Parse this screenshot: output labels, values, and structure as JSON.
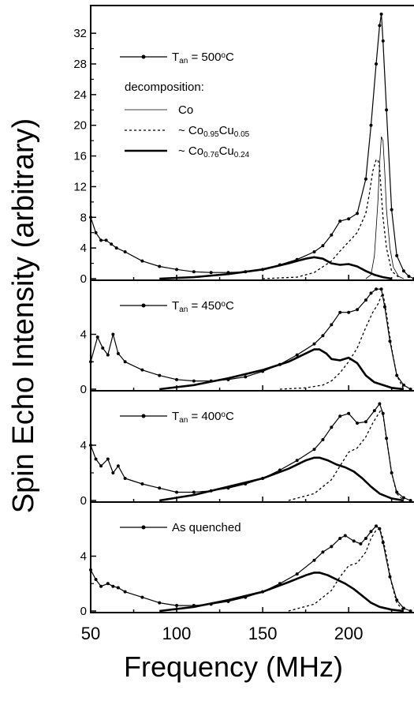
{
  "figure": {
    "ylabel": "Spin Echo Intensity (arbitrary)",
    "xlabel": "Frequency (MHz)",
    "x_ticks": [
      "50",
      "100",
      "150",
      "200"
    ]
  },
  "chart_data": [
    {
      "type": "line",
      "panel": "top",
      "xlim": [
        50,
        238
      ],
      "ylim": [
        0,
        35
      ],
      "y_ticks": [
        "0",
        "4",
        "8",
        "12",
        "16",
        "20",
        "24",
        "28",
        "32"
      ],
      "legend": {
        "data_label": "T_an = 500°C",
        "data_label_parts": [
          "T",
          "an",
          " = 500",
          "o",
          "C"
        ],
        "heading": "decomposition:",
        "components": [
          {
            "name": "Co",
            "parts": [
              "Co"
            ],
            "style": "thin-solid"
          },
          {
            "name": "~ Co0.95Cu0.05",
            "parts": [
              "~ Co",
              "0.95",
              "Cu",
              "0.05"
            ],
            "style": "dotted"
          },
          {
            "name": "~ Co0.76Cu0.24",
            "parts": [
              "~ Co",
              "0.76",
              "Cu",
              "0.24"
            ],
            "style": "thick-solid"
          }
        ]
      },
      "series": [
        {
          "role": "data",
          "x": [
            50,
            53,
            56,
            59,
            62,
            65,
            70,
            80,
            90,
            100,
            110,
            120,
            130,
            140,
            150,
            160,
            170,
            180,
            185,
            190,
            195,
            200,
            205,
            210,
            213,
            216,
            218,
            219,
            220,
            222,
            225,
            228,
            232,
            235,
            238
          ],
          "y": [
            8,
            6,
            5,
            5,
            4.5,
            4,
            3.5,
            2.3,
            1.6,
            1.2,
            0.9,
            0.8,
            0.8,
            0.9,
            1.2,
            1.8,
            2.5,
            3.5,
            4.3,
            5.7,
            7.5,
            7.8,
            8.5,
            13,
            20,
            28,
            33,
            34.5,
            31,
            22,
            9,
            3,
            1,
            0.3,
            0
          ]
        },
        {
          "role": "Co",
          "x": [
            210,
            213,
            215,
            217,
            218,
            219,
            220,
            221,
            222,
            224,
            226,
            229,
            232
          ],
          "y": [
            0,
            0.5,
            3,
            10,
            15,
            18.5,
            18,
            14,
            9,
            4,
            1.5,
            0.3,
            0
          ]
        },
        {
          "role": "Co0.95Cu0.05",
          "x": [
            150,
            170,
            180,
            190,
            195,
            200,
            205,
            210,
            212,
            214,
            216,
            217,
            218,
            219,
            220,
            222,
            225,
            230
          ],
          "y": [
            0,
            0.2,
            0.8,
            2.3,
            3.6,
            4.8,
            6,
            8.5,
            11,
            14,
            15.5,
            15.5,
            14.5,
            11,
            8,
            4,
            1,
            0
          ]
        },
        {
          "role": "Co0.76Cu0.24",
          "x": [
            90,
            110,
            130,
            150,
            165,
            175,
            180,
            185,
            190,
            195,
            200,
            205,
            210,
            215,
            220,
            225
          ],
          "y": [
            0,
            0.2,
            0.6,
            1.2,
            2,
            2.6,
            2.8,
            2.6,
            2,
            1.8,
            1.9,
            1.6,
            1,
            0.5,
            0.2,
            0
          ]
        }
      ]
    },
    {
      "type": "line",
      "panel": "450",
      "xlim": [
        50,
        238
      ],
      "ylim": [
        0,
        7.6
      ],
      "y_ticks": [
        "0",
        "4"
      ],
      "legend": {
        "data_label": "T_an = 450°C",
        "data_label_parts": [
          "T",
          "an",
          " = 450",
          "o",
          "C"
        ]
      },
      "series": [
        {
          "role": "data",
          "x": [
            50,
            54,
            57,
            60,
            63,
            66,
            70,
            80,
            90,
            100,
            110,
            120,
            130,
            140,
            150,
            160,
            170,
            180,
            185,
            190,
            195,
            200,
            205,
            210,
            213,
            216,
            219,
            221,
            224,
            228,
            232,
            236
          ],
          "y": [
            2,
            3.8,
            3,
            2.5,
            4,
            2.6,
            2,
            1.4,
            1,
            0.7,
            0.6,
            0.6,
            0.7,
            0.9,
            1.3,
            1.8,
            2.5,
            3.3,
            3.9,
            4.7,
            5.6,
            5.6,
            5.8,
            6.5,
            7,
            7.3,
            7.3,
            6,
            3.5,
            1,
            0.3,
            0
          ]
        },
        {
          "role": "Co0.95Cu0.05",
          "x": [
            160,
            175,
            185,
            190,
            195,
            200,
            205,
            210,
            214,
            217,
            219,
            220,
            222,
            225,
            228,
            232
          ],
          "y": [
            0,
            0.1,
            0.3,
            0.6,
            1.2,
            2,
            3,
            4.5,
            5.6,
            6.2,
            6.8,
            7,
            5.5,
            3,
            1,
            0
          ]
        },
        {
          "role": "Co0.76Cu0.24",
          "x": [
            90,
            110,
            130,
            150,
            165,
            175,
            180,
            183,
            187,
            190,
            195,
            200,
            205,
            210,
            215,
            220,
            225,
            232
          ],
          "y": [
            0,
            0.3,
            0.8,
            1.4,
            2,
            2.6,
            2.9,
            2.9,
            2.6,
            2.2,
            2.1,
            2.3,
            1.9,
            1,
            0.5,
            0.3,
            0.1,
            0
          ]
        }
      ]
    },
    {
      "type": "line",
      "panel": "400",
      "xlim": [
        50,
        238
      ],
      "ylim": [
        0,
        7.6
      ],
      "y_ticks": [
        "0",
        "4"
      ],
      "legend": {
        "data_label": "T_an = 400°C",
        "data_label_parts": [
          "T",
          "an",
          " = 400",
          "o",
          "C"
        ]
      },
      "series": [
        {
          "role": "data",
          "x": [
            50,
            53,
            56,
            60,
            63,
            66,
            70,
            80,
            90,
            100,
            110,
            120,
            130,
            140,
            150,
            160,
            170,
            180,
            185,
            190,
            195,
            200,
            205,
            210,
            215,
            218,
            220,
            222,
            225,
            228,
            232,
            236
          ],
          "y": [
            4,
            3,
            2.5,
            3,
            2,
            2.5,
            1.6,
            1.2,
            0.9,
            0.6,
            0.6,
            0.7,
            0.9,
            1.2,
            1.6,
            2.2,
            2.9,
            3.7,
            4.4,
            5.3,
            6.1,
            6.3,
            5.6,
            5.7,
            6.5,
            7,
            6.3,
            4.5,
            2,
            0.6,
            0.2,
            0
          ]
        },
        {
          "role": "Co0.95Cu0.05",
          "x": [
            165,
            180,
            190,
            195,
            200,
            205,
            210,
            214,
            217,
            219,
            220,
            222,
            225,
            228,
            232
          ],
          "y": [
            0,
            0.5,
            1.5,
            2.5,
            3.5,
            3.8,
            4.6,
            5.6,
            6.2,
            6.6,
            6.2,
            4.5,
            2,
            0.5,
            0
          ]
        },
        {
          "role": "Co0.76Cu0.24",
          "x": [
            90,
            100,
            110,
            130,
            150,
            165,
            175,
            180,
            183,
            188,
            193,
            198,
            203,
            208,
            213,
            218,
            225,
            232
          ],
          "y": [
            0,
            0.2,
            0.4,
            1,
            1.6,
            2.3,
            2.9,
            3.1,
            3.1,
            2.9,
            2.6,
            2.4,
            2.1,
            1.6,
            1,
            0.5,
            0.15,
            0
          ]
        }
      ]
    },
    {
      "type": "line",
      "panel": "quenched",
      "xlim": [
        50,
        238
      ],
      "ylim": [
        0,
        7.6
      ],
      "y_ticks": [
        "0",
        "4"
      ],
      "legend": {
        "data_label": "As quenched",
        "data_label_parts": [
          "As quenched"
        ]
      },
      "series": [
        {
          "role": "data",
          "x": [
            50,
            53,
            56,
            60,
            63,
            66,
            70,
            80,
            90,
            100,
            110,
            120,
            130,
            140,
            150,
            160,
            170,
            180,
            185,
            190,
            195,
            198,
            203,
            207,
            210,
            213,
            216,
            218,
            220,
            224,
            228,
            232,
            236
          ],
          "y": [
            3,
            2.3,
            1.8,
            2,
            1.8,
            1.7,
            1.4,
            1,
            0.6,
            0.4,
            0.4,
            0.5,
            0.7,
            1,
            1.4,
            2,
            2.7,
            3.7,
            4.3,
            4.7,
            5.3,
            5.5,
            5.1,
            4.9,
            5.3,
            5.8,
            6.2,
            6,
            5,
            2.5,
            0.8,
            0.2,
            0
          ]
        },
        {
          "role": "Co0.95Cu0.05",
          "x": [
            165,
            180,
            190,
            195,
            200,
            205,
            210,
            213,
            216,
            218,
            220,
            222,
            225,
            228,
            232
          ],
          "y": [
            0,
            0.5,
            1.5,
            2.5,
            3.3,
            3.5,
            4.3,
            5.3,
            5.9,
            6,
            5.3,
            4,
            2,
            0.6,
            0
          ]
        },
        {
          "role": "Co0.76Cu0.24",
          "x": [
            90,
            100,
            110,
            130,
            150,
            165,
            175,
            180,
            183,
            188,
            193,
            198,
            203,
            208,
            213,
            218,
            225,
            232
          ],
          "y": [
            0,
            0.15,
            0.3,
            0.8,
            1.4,
            2.1,
            2.6,
            2.8,
            2.8,
            2.6,
            2.3,
            2,
            1.6,
            1.1,
            0.6,
            0.3,
            0.1,
            0
          ]
        }
      ]
    }
  ]
}
